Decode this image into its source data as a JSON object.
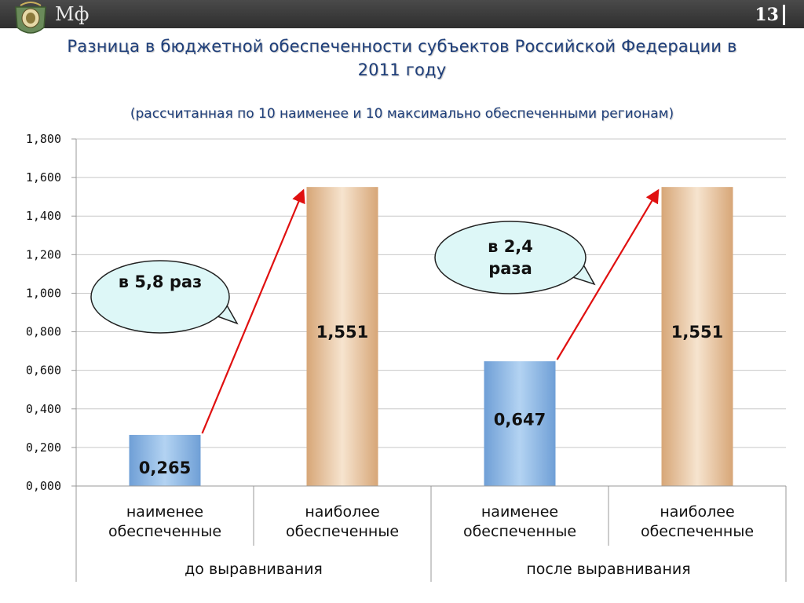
{
  "header": {
    "brand": "Мф",
    "page_number": "13"
  },
  "slide": {
    "title": "Разница в бюджетной обеспеченности субъектов Российской Федерации в 2011 году",
    "subtitle": "(рассчитанная по 10 наименее и 10 максимально обеспеченными регионам)"
  },
  "chart_data": {
    "type": "bar",
    "categories": [
      "наименее обеспеченные",
      "наиболее обеспеченные",
      "наименее обеспеченные",
      "наиболее обеспеченные"
    ],
    "groups": [
      "до выравнивания",
      "после выравнивания"
    ],
    "values": [
      0.265,
      1.551,
      0.647,
      1.551
    ],
    "data_labels": [
      "0,265",
      "1,551",
      "0,647",
      "1,551"
    ],
    "bar_colors": [
      "#79a9db",
      "#dcae82",
      "#79a9db",
      "#dcae82"
    ],
    "ylim": [
      0,
      1.8
    ],
    "yticks": [
      "0,000",
      "0,200",
      "0,400",
      "0,600",
      "0,800",
      "1,000",
      "1,200",
      "1,400",
      "1,600",
      "1,800"
    ],
    "grid": true,
    "annotations": [
      {
        "text": "в 5,8 раз"
      },
      {
        "text": "в 2,4 раза"
      }
    ],
    "arrow_color": "#e01010"
  }
}
